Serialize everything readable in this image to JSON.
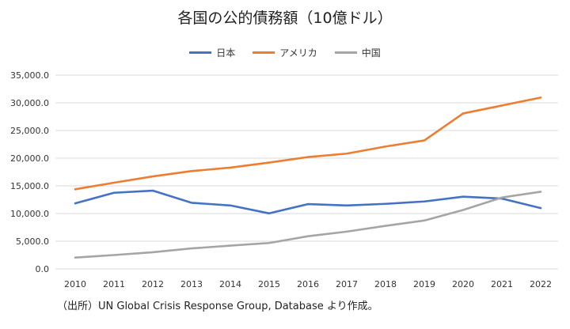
{
  "chart_data": {
    "type": "line",
    "title": "各国の公的債務額（10億ドル）",
    "xlabel": "",
    "ylabel": "",
    "categories": [
      "2010",
      "2011",
      "2012",
      "2013",
      "2014",
      "2015",
      "2016",
      "2017",
      "2018",
      "2019",
      "2020",
      "2021",
      "2022"
    ],
    "ylim": [
      0,
      35000
    ],
    "yticks": [
      "0.0",
      "5,000.0",
      "10,000.0",
      "15,000.0",
      "20,000.0",
      "25,000.0",
      "30,000.0",
      "35,000.0"
    ],
    "grid": true,
    "legend_position": "top",
    "series": [
      {
        "name": "日本",
        "color": "#4472C4",
        "values": [
          11840,
          13750,
          14140,
          11940,
          11460,
          10030,
          11700,
          11460,
          11750,
          12180,
          13040,
          12700,
          10980
        ]
      },
      {
        "name": "アメリカ",
        "color": "#ED7D31",
        "values": [
          14380,
          15570,
          16710,
          17670,
          18290,
          19200,
          20200,
          20820,
          22110,
          23210,
          28080,
          29510,
          30950
        ]
      },
      {
        "name": "中国",
        "color": "#A5A5A5",
        "values": [
          2050,
          2500,
          3010,
          3700,
          4200,
          4680,
          5900,
          6730,
          7780,
          8740,
          10650,
          12890,
          13940
        ]
      }
    ]
  },
  "source": "（出所）UN Global Crisis Response Group, Database より作成。"
}
